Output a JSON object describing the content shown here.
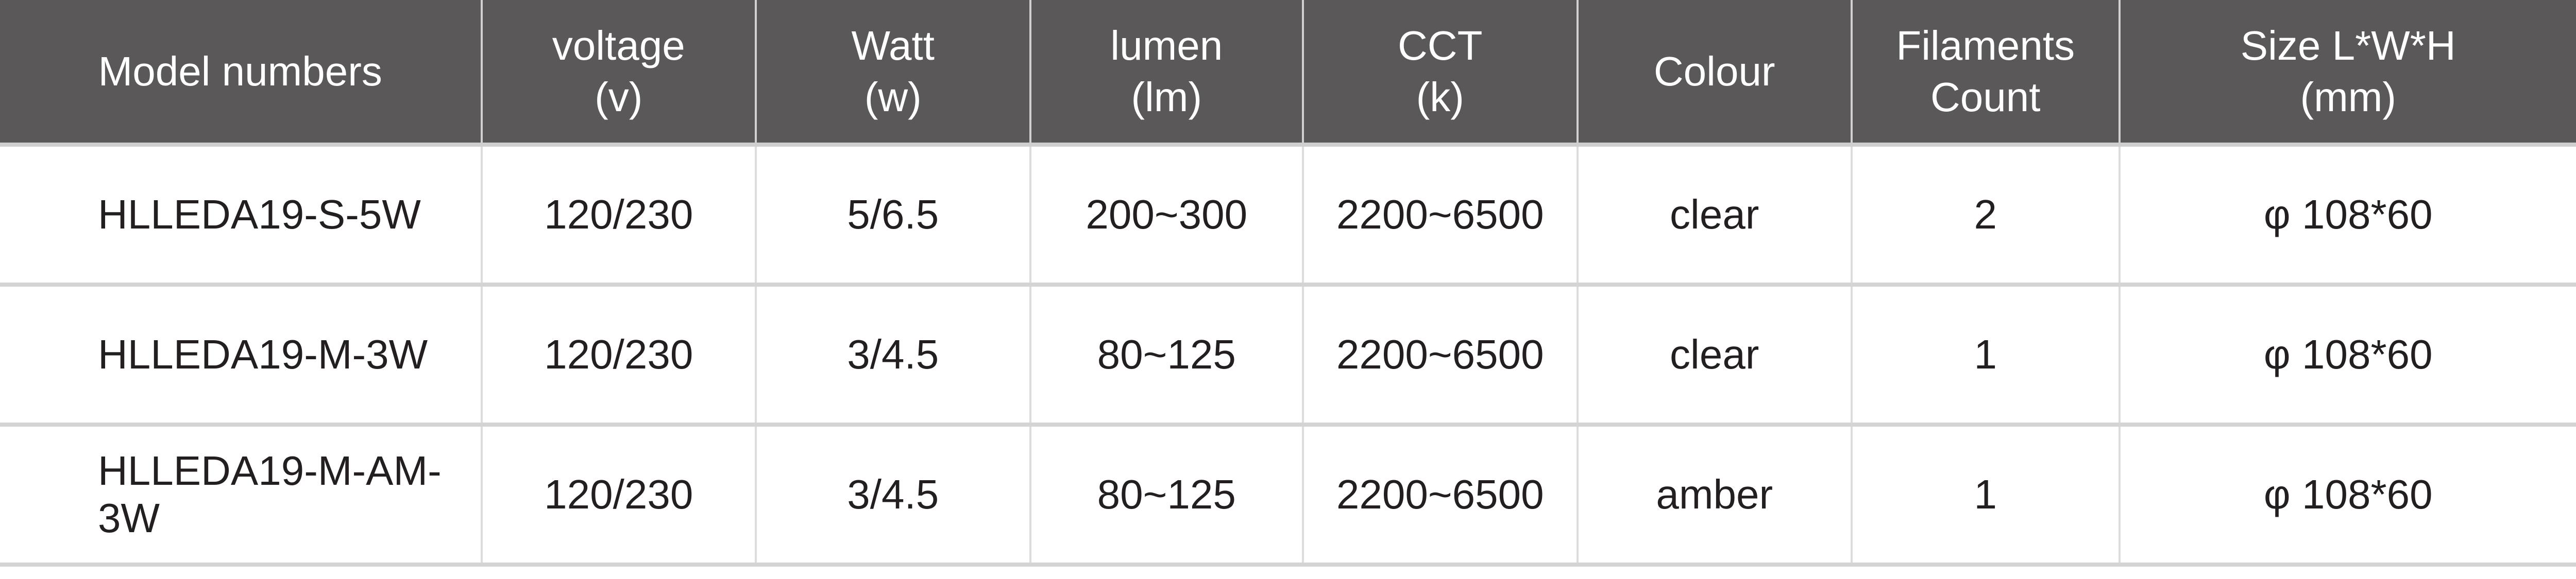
{
  "table": {
    "headers": [
      {
        "line1": "Model numbers",
        "line2": ""
      },
      {
        "line1": "voltage",
        "line2": "(v)"
      },
      {
        "line1": "Watt",
        "line2": "(w)"
      },
      {
        "line1": "lumen",
        "line2": "(lm)"
      },
      {
        "line1": "CCT",
        "line2": "(k)"
      },
      {
        "line1": "Colour",
        "line2": ""
      },
      {
        "line1": "Filaments",
        "line2": "Count"
      },
      {
        "line1": "Size L*W*H",
        "line2": "(mm)"
      }
    ],
    "rows": [
      [
        "HLLEDA19-S-5W",
        "120/230",
        "5/6.5",
        "200~300",
        "2200~6500",
        "clear",
        "2",
        "φ 108*60"
      ],
      [
        "HLLEDA19-M-3W",
        "120/230",
        "3/4.5",
        "80~125",
        "2200~6500",
        "clear",
        "1",
        "φ 108*60"
      ],
      [
        "HLLEDA19-M-AM-3W",
        "120/230",
        "3/4.5",
        "80~125",
        "2200~6500",
        "amber",
        "1",
        "φ 108*60"
      ]
    ]
  },
  "colors": {
    "header_bg": "#5a5859",
    "header_text": "#ffffff",
    "body_text": "#231f20",
    "grid": "#d4d4d4"
  }
}
